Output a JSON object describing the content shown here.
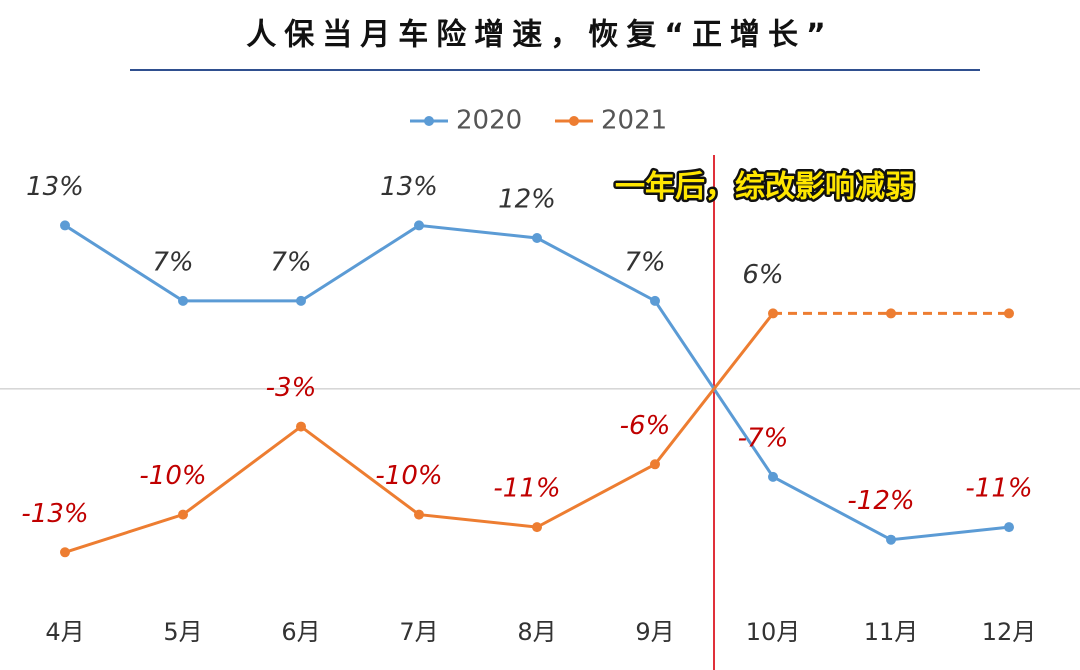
{
  "chart_data": {
    "type": "line",
    "title": "人保当月车险增速，恢复“正增长”",
    "annotation": "一年后，综改影响减弱",
    "categories": [
      "4月",
      "5月",
      "6月",
      "7月",
      "8月",
      "9月",
      "10月",
      "11月",
      "12月"
    ],
    "series": [
      {
        "name": "2020",
        "color": "#5b9bd5",
        "values": [
          13,
          7,
          7,
          13,
          12,
          7,
          -7,
          -12,
          -11
        ],
        "value_labels": [
          "13%",
          "7%",
          "7%",
          "13%",
          "12%",
          "7%",
          "-7%",
          "-12%",
          "-11%"
        ]
      },
      {
        "name": "2021",
        "color": "#ed7d31",
        "values": [
          -13,
          -10,
          -3,
          -10,
          -11,
          -6,
          6,
          6,
          6
        ],
        "value_labels": [
          "-13%",
          "-10%",
          "-3%",
          "-10%",
          "-11%",
          "-6%",
          "6%",
          null,
          null
        ],
        "dashed_after_index": 6
      }
    ],
    "ylim": [
      -16,
      19
    ],
    "yticks": [
      0
    ],
    "grid": true,
    "legend": "top"
  }
}
